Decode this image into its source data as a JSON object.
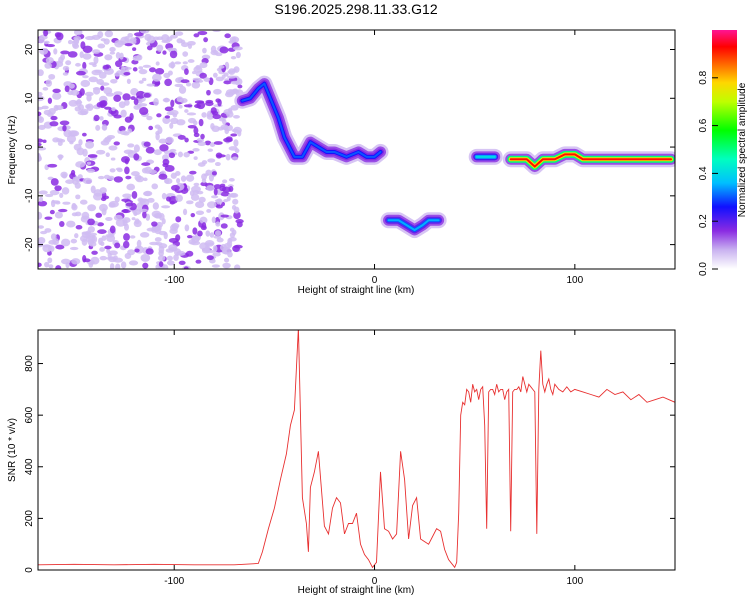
{
  "title": "S196.2025.298.11.33.G12",
  "chart_data": [
    {
      "type": "heatmap",
      "xlabel": "Height of straight line (km)",
      "ylabel": "Frequency (Hz)",
      "xlim": [
        -168,
        150
      ],
      "ylim": [
        -25,
        24
      ],
      "xticks": [
        -100,
        0,
        100
      ],
      "xtick_labels": [
        "-100",
        "0",
        "100"
      ],
      "yticks": [
        -20,
        -10,
        0,
        10,
        20
      ],
      "ytick_labels": [
        "-20",
        "-10",
        "0",
        "10",
        "20"
      ],
      "colorbar": {
        "label": "Normalized spectral amplitude",
        "range": [
          0,
          1
        ],
        "ticks": [
          0.0,
          0.2,
          0.4,
          0.6,
          0.8
        ],
        "tick_labels": [
          "0.0",
          "0.2",
          "0.4",
          "0.6",
          "0.8"
        ]
      },
      "ridges": [
        {
          "name": "noise-field",
          "x_range": [
            -168,
            -67
          ],
          "y_range": [
            -25,
            24
          ],
          "amplitude": 0.08
        },
        {
          "name": "ridge-1",
          "points": [
            [
              -66,
              9.5
            ],
            [
              -62,
              10
            ],
            [
              -58,
              12
            ],
            [
              -55,
              13
            ],
            [
              -52,
              10
            ],
            [
              -48,
              6
            ],
            [
              -45,
              2
            ],
            [
              -40,
              -2
            ],
            [
              -36,
              -2
            ],
            [
              -32,
              1
            ],
            [
              -28,
              0
            ],
            [
              -24,
              -1
            ],
            [
              -20,
              -1
            ],
            [
              -14,
              -2
            ],
            [
              -8,
              -1
            ],
            [
              -4,
              -2
            ],
            [
              0,
              -2
            ],
            [
              3,
              -1
            ]
          ],
          "amplitude": 0.3
        },
        {
          "name": "ridge-2",
          "points": [
            [
              7,
              -15
            ],
            [
              12,
              -15
            ],
            [
              16,
              -16
            ],
            [
              20,
              -17
            ],
            [
              24,
              -16
            ],
            [
              27,
              -15
            ],
            [
              32,
              -15
            ]
          ],
          "amplitude": 0.35
        },
        {
          "name": "ridge-3",
          "points": [
            [
              51,
              -2
            ],
            [
              56,
              -2
            ],
            [
              60,
              -2
            ]
          ],
          "amplitude": 0.4
        },
        {
          "name": "ridge-4",
          "points": [
            [
              68,
              -2.5
            ],
            [
              72,
              -2.5
            ],
            [
              76,
              -2.5
            ],
            [
              80,
              -4
            ],
            [
              84,
              -2.5
            ],
            [
              90,
              -2.5
            ],
            [
              95,
              -1.5
            ],
            [
              100,
              -1.5
            ],
            [
              104,
              -2.5
            ],
            [
              110,
              -2.5
            ],
            [
              120,
              -2.5
            ],
            [
              130,
              -2.5
            ],
            [
              140,
              -2.5
            ],
            [
              148,
              -2.5
            ]
          ],
          "amplitude": 0.92
        }
      ]
    },
    {
      "type": "line",
      "xlabel": "Height of straight line (km)",
      "ylabel": "SNR (10 * v/v)",
      "xlim": [
        -168,
        150
      ],
      "ylim": [
        0,
        930
      ],
      "xticks": [
        -100,
        0,
        100
      ],
      "xtick_labels": [
        "-100",
        "0",
        "100"
      ],
      "yticks": [
        0,
        200,
        400,
        600,
        800
      ],
      "ytick_labels": [
        "0",
        "200",
        "400",
        "600",
        "800"
      ],
      "series": [
        {
          "name": "SNR",
          "color": "#e83030",
          "x": [
            -168,
            -150,
            -130,
            -110,
            -90,
            -70,
            -58,
            -56,
            -53,
            -50,
            -47,
            -44,
            -42,
            -40,
            -38,
            -36,
            -34,
            -33,
            -32,
            -30,
            -28,
            -25,
            -23,
            -21,
            -19,
            -17,
            -15,
            -13,
            -11,
            -9,
            -7,
            -5,
            -3,
            -1,
            1,
            3,
            5,
            7,
            9,
            11,
            13,
            15,
            17,
            19,
            21,
            23,
            25,
            27,
            29,
            31,
            33,
            35,
            37,
            39,
            40,
            41,
            42,
            43,
            44,
            45,
            46,
            47,
            48,
            49,
            50,
            51,
            52,
            53,
            54,
            55,
            56,
            57,
            58,
            59,
            60,
            61,
            62,
            63,
            64,
            65,
            66,
            67,
            68,
            69,
            70,
            71,
            72,
            73,
            74,
            75,
            76,
            77,
            78,
            79,
            80,
            81,
            82,
            83,
            84,
            85,
            86,
            87,
            88,
            89,
            90,
            92,
            94,
            96,
            98,
            100,
            104,
            108,
            112,
            116,
            120,
            124,
            128,
            132,
            136,
            140,
            144,
            150
          ],
          "values": [
            20,
            22,
            20,
            22,
            20,
            20,
            25,
            70,
            160,
            240,
            350,
            450,
            560,
            620,
            940,
            280,
            180,
            70,
            320,
            380,
            460,
            170,
            140,
            240,
            280,
            260,
            140,
            180,
            180,
            220,
            100,
            60,
            40,
            10,
            30,
            380,
            160,
            150,
            120,
            140,
            460,
            350,
            120,
            250,
            280,
            120,
            110,
            100,
            130,
            160,
            150,
            80,
            40,
            20,
            10,
            30,
            220,
            600,
            650,
            640,
            700,
            690,
            650,
            720,
            690,
            700,
            660,
            700,
            710,
            560,
            160,
            690,
            700,
            700,
            680,
            720,
            690,
            700,
            700,
            660,
            690,
            700,
            150,
            690,
            700,
            700,
            710,
            690,
            750,
            720,
            690,
            720,
            710,
            700,
            690,
            140,
            700,
            850,
            720,
            690,
            720,
            740,
            700,
            680,
            720,
            700,
            690,
            710,
            690,
            700,
            690,
            680,
            670,
            700,
            680,
            690,
            660,
            680,
            650,
            660,
            670,
            650
          ]
        }
      ]
    }
  ]
}
